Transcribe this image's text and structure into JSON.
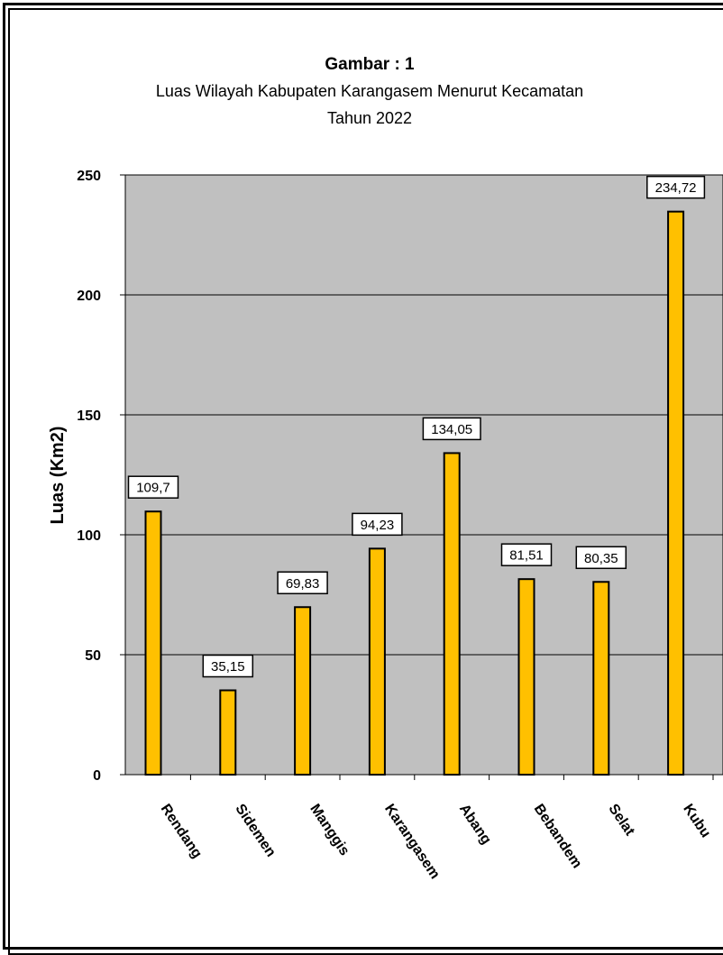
{
  "chart_data": {
    "type": "bar",
    "title": "Gambar : 1",
    "subtitle_lines": [
      "Luas Wilayah Kabupaten Karangasem Menurut Kecamatan",
      "Tahun 2022"
    ],
    "xlabel": "",
    "ylabel": "Luas (Km2)",
    "ylim": [
      0,
      250
    ],
    "yticks": [
      "0",
      "50",
      "100",
      "150",
      "200",
      "250"
    ],
    "grid": true,
    "categories": [
      "Rendang",
      "Sidemen",
      "Manggis",
      "Karangasem",
      "Abang",
      "Bebandem",
      "Selat",
      "Kubu"
    ],
    "category_labels_visible": [
      "Rendang",
      "Sidemen",
      "Manggis",
      "Karangasem",
      "Abang",
      "Bebandem",
      "Selat",
      "Kubu"
    ],
    "values": [
      109.7,
      35.15,
      69.83,
      94.23,
      134.05,
      81.51,
      80.35,
      234.72
    ],
    "value_labels": [
      "109,7",
      "35,15",
      "69,83",
      "94,23",
      "134,05",
      "81,51",
      "80,35",
      "234,72"
    ],
    "colors": {
      "bar": "#FFC000",
      "bar_edge": "#000000",
      "plot_bg": "#C0C0C0",
      "grid": "#000000"
    }
  }
}
